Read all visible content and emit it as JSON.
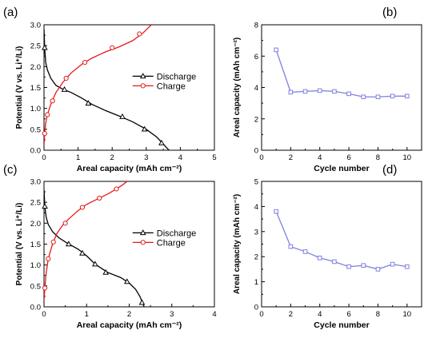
{
  "chart_data": [
    {
      "panel": "(a)",
      "type": "line",
      "xlabel": "Areal capacity (mAh cm⁻²)",
      "ylabel": "Potential (V vs. Li⁺/Li)",
      "xlim": [
        0,
        5
      ],
      "ylim": [
        0.0,
        3.0
      ],
      "xticks": [
        "0",
        "1",
        "2",
        "3",
        "4",
        "5"
      ],
      "yticks": [
        "0.0",
        "0.5",
        "1.0",
        "1.5",
        "2.0",
        "2.5",
        "3.0"
      ],
      "legend_position": "center-right",
      "series": [
        {
          "name": "Discharge",
          "color": "#000000",
          "marker": "triangle",
          "x": [
            0.0,
            0.02,
            0.05,
            0.1,
            0.2,
            0.35,
            0.55,
            0.8,
            1.1,
            1.4,
            1.8,
            2.2,
            2.6,
            3.0,
            3.3,
            3.5,
            3.62,
            3.67
          ],
          "y": [
            2.9,
            2.45,
            2.1,
            1.92,
            1.72,
            1.55,
            1.46,
            1.38,
            1.25,
            1.1,
            0.95,
            0.82,
            0.68,
            0.5,
            0.32,
            0.15,
            0.04,
            0.0
          ],
          "marker_x": [
            0.02,
            0.6,
            1.3,
            2.3,
            2.95,
            3.45
          ],
          "marker_y": [
            2.45,
            1.45,
            1.12,
            0.8,
            0.5,
            0.17
          ]
        },
        {
          "name": "Charge",
          "color": "#e41a1c",
          "marker": "circle",
          "x": [
            0.0,
            0.02,
            0.05,
            0.1,
            0.2,
            0.35,
            0.55,
            0.8,
            1.1,
            1.4,
            1.8,
            2.2,
            2.6,
            2.9,
            3.05,
            3.15
          ],
          "y": [
            0.12,
            0.4,
            0.65,
            0.85,
            1.1,
            1.38,
            1.62,
            1.85,
            2.05,
            2.2,
            2.35,
            2.47,
            2.62,
            2.8,
            2.92,
            3.0
          ],
          "marker_x": [
            0.02,
            0.1,
            0.25,
            0.65,
            1.2,
            2.0,
            2.8
          ],
          "marker_y": [
            0.4,
            0.85,
            1.18,
            1.72,
            2.1,
            2.45,
            2.78
          ]
        }
      ]
    },
    {
      "panel": "(b)",
      "type": "line",
      "xlabel": "Cycle number",
      "ylabel": "Areal capacity (mAh cm⁻²)",
      "xlim": [
        0,
        11
      ],
      "ylim": [
        0,
        8
      ],
      "xticks": [
        "0",
        "2",
        "4",
        "6",
        "8",
        "10"
      ],
      "yticks": [
        "0",
        "2",
        "4",
        "6",
        "8"
      ],
      "series": [
        {
          "color": "#8080e0",
          "marker": "square",
          "x": [
            1,
            2,
            3,
            4,
            5,
            6,
            7,
            8,
            9,
            10
          ],
          "y": [
            6.4,
            3.7,
            3.75,
            3.8,
            3.75,
            3.6,
            3.4,
            3.4,
            3.45,
            3.45
          ]
        }
      ]
    },
    {
      "panel": "(c)",
      "type": "line",
      "xlabel": "Areal capacity (mAh cm⁻²)",
      "ylabel": "Potential (V vs. Li⁺/Li)",
      "xlim": [
        0,
        4
      ],
      "ylim": [
        0.0,
        3.0
      ],
      "xticks": [
        "0",
        "1",
        "2",
        "3",
        "4"
      ],
      "yticks": [
        "0.0",
        "0.5",
        "1.0",
        "1.5",
        "2.0",
        "2.5",
        "3.0"
      ],
      "legend_position": "center-right",
      "series": [
        {
          "name": "Discharge",
          "color": "#000000",
          "marker": "triangle",
          "x": [
            0.0,
            0.02,
            0.05,
            0.1,
            0.2,
            0.35,
            0.55,
            0.8,
            1.0,
            1.2,
            1.5,
            1.8,
            2.0,
            2.15,
            2.25,
            2.32,
            2.35
          ],
          "y": [
            2.8,
            2.4,
            2.15,
            1.97,
            1.8,
            1.65,
            1.52,
            1.38,
            1.22,
            1.02,
            0.82,
            0.7,
            0.57,
            0.42,
            0.25,
            0.08,
            0.0
          ],
          "marker_x": [
            0.02,
            0.58,
            0.9,
            1.2,
            1.45,
            1.95,
            2.3
          ],
          "marker_y": [
            2.4,
            1.5,
            1.28,
            1.02,
            0.82,
            0.6,
            0.1
          ]
        },
        {
          "name": "Charge",
          "color": "#e41a1c",
          "marker": "circle",
          "x": [
            0.0,
            0.02,
            0.05,
            0.1,
            0.2,
            0.3,
            0.45,
            0.6,
            0.8,
            1.0,
            1.2,
            1.5,
            1.7,
            1.85,
            1.95
          ],
          "y": [
            0.15,
            0.45,
            0.8,
            1.15,
            1.5,
            1.75,
            1.97,
            2.12,
            2.3,
            2.45,
            2.55,
            2.7,
            2.82,
            2.92,
            3.0
          ],
          "marker_x": [
            0.02,
            0.1,
            0.22,
            0.5,
            0.9,
            1.3,
            1.7
          ],
          "marker_y": [
            0.45,
            1.15,
            1.55,
            2.0,
            2.38,
            2.6,
            2.82
          ]
        }
      ]
    },
    {
      "panel": "(d)",
      "type": "line",
      "xlabel": "Cycle number",
      "ylabel": "Areal capacity (mAh cm⁻²)",
      "xlim": [
        0,
        11
      ],
      "ylim": [
        0,
        5
      ],
      "xticks": [
        "0",
        "2",
        "4",
        "6",
        "8",
        "10"
      ],
      "yticks": [
        "0",
        "1",
        "2",
        "3",
        "4",
        "5"
      ],
      "series": [
        {
          "color": "#8080e0",
          "marker": "square",
          "x": [
            1,
            2,
            3,
            4,
            5,
            6,
            7,
            8,
            9,
            10
          ],
          "y": [
            3.8,
            2.4,
            2.2,
            1.95,
            1.8,
            1.6,
            1.65,
            1.5,
            1.7,
            1.6
          ]
        }
      ]
    }
  ]
}
